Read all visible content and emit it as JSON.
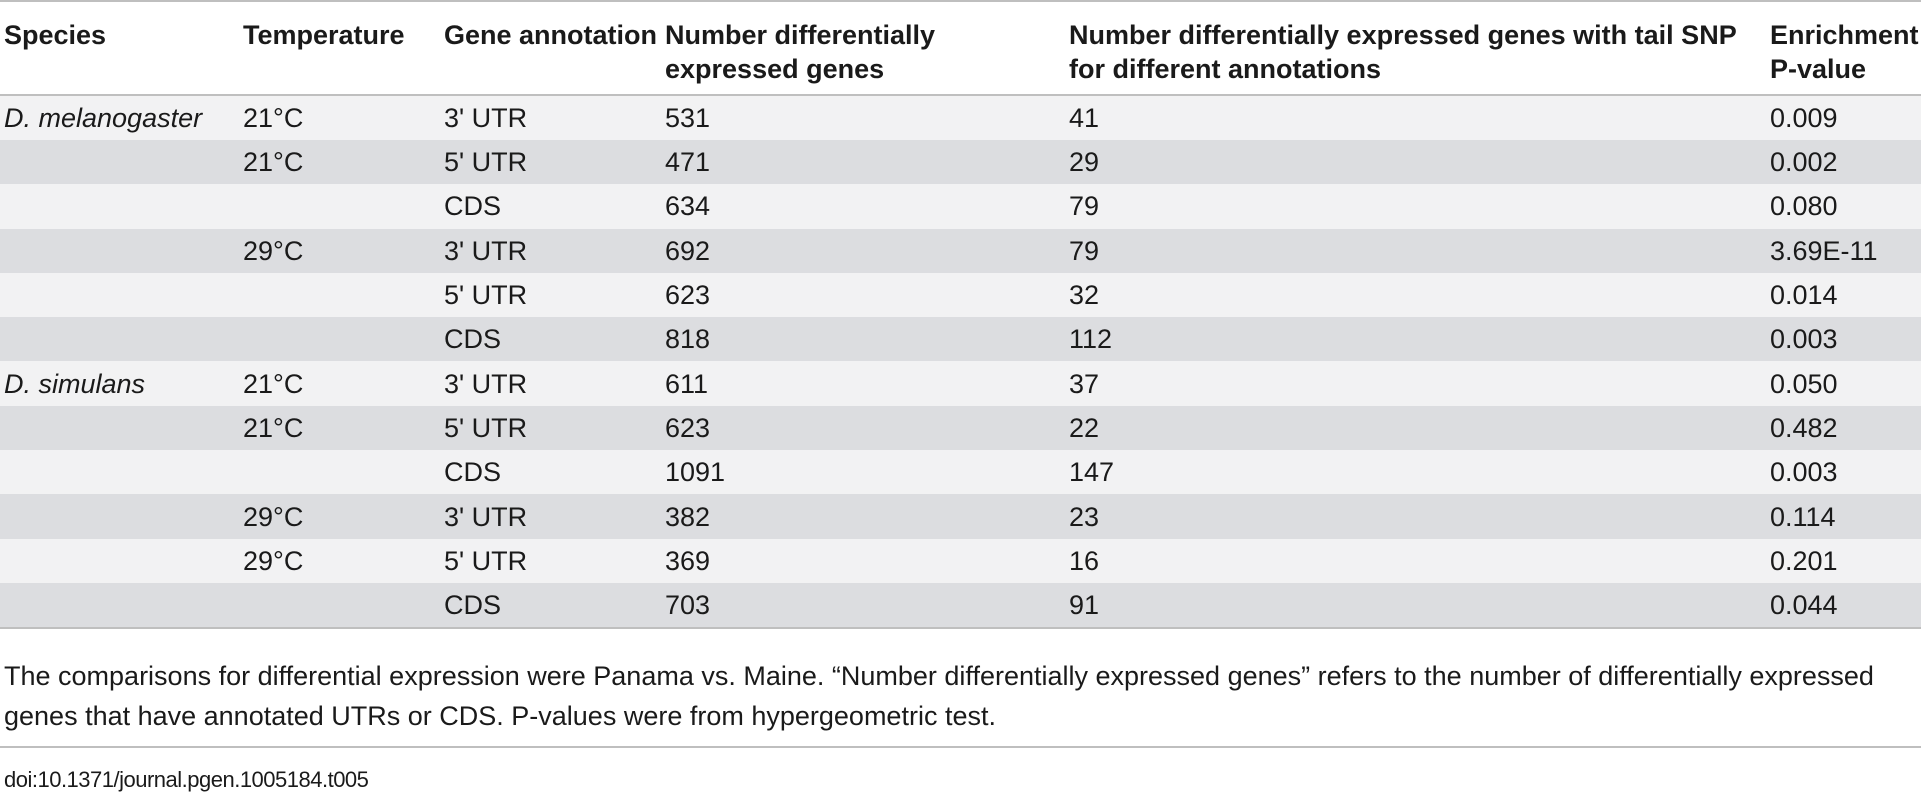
{
  "table": {
    "headers": {
      "species": "Species",
      "temperature": "Temperature",
      "gene_annotation": "Gene annotation",
      "number_de_genes": "Number differentially expressed genes",
      "number_de_tail_snp": "Number differentially expressed genes with tail SNP for different annotations",
      "enrichment_p": "Enrichment P-value"
    },
    "rows": [
      {
        "species": "D. melanogaster",
        "temperature": "21°C",
        "annotation": "3' UTR",
        "de_genes": "531",
        "tail_snp": "41",
        "p_value": "0.009"
      },
      {
        "species": "",
        "temperature": "21°C",
        "annotation": "5' UTR",
        "de_genes": "471",
        "tail_snp": "29",
        "p_value": "0.002"
      },
      {
        "species": "",
        "temperature": "",
        "annotation": "CDS",
        "de_genes": "634",
        "tail_snp": "79",
        "p_value": "0.080"
      },
      {
        "species": "",
        "temperature": "29°C",
        "annotation": "3' UTR",
        "de_genes": "692",
        "tail_snp": "79",
        "p_value": "3.69E-11"
      },
      {
        "species": "",
        "temperature": "",
        "annotation": "5' UTR",
        "de_genes": "623",
        "tail_snp": "32",
        "p_value": "0.014"
      },
      {
        "species": "",
        "temperature": "",
        "annotation": "CDS",
        "de_genes": "818",
        "tail_snp": "112",
        "p_value": "0.003"
      },
      {
        "species": "D. simulans",
        "temperature": "21°C",
        "annotation": "3' UTR",
        "de_genes": "611",
        "tail_snp": "37",
        "p_value": "0.050"
      },
      {
        "species": "",
        "temperature": "21°C",
        "annotation": "5' UTR",
        "de_genes": "623",
        "tail_snp": "22",
        "p_value": "0.482"
      },
      {
        "species": "",
        "temperature": "",
        "annotation": "CDS",
        "de_genes": "1091",
        "tail_snp": "147",
        "p_value": "0.003"
      },
      {
        "species": "",
        "temperature": "29°C",
        "annotation": "3' UTR",
        "de_genes": "382",
        "tail_snp": "23",
        "p_value": "0.114"
      },
      {
        "species": "",
        "temperature": "29°C",
        "annotation": "5' UTR",
        "de_genes": "369",
        "tail_snp": "16",
        "p_value": "0.201"
      },
      {
        "species": "",
        "temperature": "",
        "annotation": "CDS",
        "de_genes": "703",
        "tail_snp": "91",
        "p_value": "0.044"
      }
    ]
  },
  "footnote": "The comparisons for differential expression were Panama vs. Maine. “Number differentially expressed genes” refers to the number of differentially expressed genes that have annotated UTRs or CDS. P-values were from hypergeometric test.",
  "doi": "doi:10.1371/journal.pgen.1005184.t005",
  "colors": {
    "row_light": "#f2f2f3",
    "row_dark": "#dcdde0",
    "rule": "#bfbfbf"
  }
}
